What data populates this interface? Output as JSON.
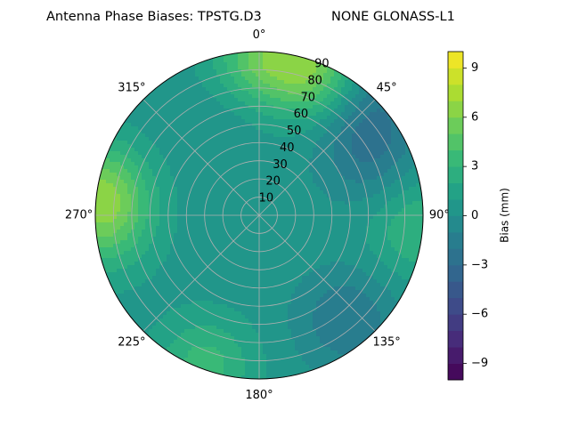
{
  "chart_data": {
    "type": "polar-contour",
    "title_left": "Antenna Phase Biases: TPSTG.D3",
    "title_right": "NONE GLONASS-L1",
    "azimuth_ticks": [
      "0°",
      "45°",
      "90°",
      "135°",
      "180°",
      "225°",
      "270°",
      "315°"
    ],
    "azimuth_tick_values": [
      0,
      45,
      90,
      135,
      180,
      225,
      270,
      315
    ],
    "radial_ticks": [
      "10",
      "20",
      "30",
      "40",
      "50",
      "60",
      "70",
      "80",
      "90"
    ],
    "radial_tick_values": [
      10,
      20,
      30,
      40,
      50,
      60,
      70,
      80,
      90
    ],
    "rlim": [
      0,
      90
    ],
    "theta_zero": "N",
    "theta_direction": "clockwise",
    "grid": true,
    "colorbar": {
      "label": "Bias (mm)",
      "range": [
        -10,
        10
      ],
      "ticks": [
        "−9",
        "−6",
        "−3",
        "0",
        "3",
        "6",
        "9"
      ],
      "tick_values": [
        -9,
        -6,
        -3,
        0,
        3,
        6,
        9
      ],
      "levels": [
        -10,
        -9,
        -8,
        -7,
        -6,
        -5,
        -4,
        -3,
        -2,
        -1,
        0,
        1,
        2,
        3,
        4,
        5,
        6,
        7,
        8,
        9,
        10
      ],
      "colormap": "viridis"
    },
    "field": {
      "background_bias_mm": 0.5,
      "features": [
        {
          "azimuth": 0,
          "zenith": 88,
          "bias_mm": 4.5
        },
        {
          "azimuth": 20,
          "zenith": 85,
          "bias_mm": 5.5
        },
        {
          "azimuth": 280,
          "zenith": 88,
          "bias_mm": 5.0
        },
        {
          "azimuth": 265,
          "zenith": 85,
          "bias_mm": 3.5
        },
        {
          "azimuth": 95,
          "zenith": 88,
          "bias_mm": 3.0
        },
        {
          "azimuth": 200,
          "zenith": 88,
          "bias_mm": 3.5
        },
        {
          "azimuth": 140,
          "zenith": 75,
          "bias_mm": -2.0
        },
        {
          "azimuth": 60,
          "zenith": 68,
          "bias_mm": -1.8
        },
        {
          "azimuth": 45,
          "zenith": 88,
          "bias_mm": -1.5
        },
        {
          "azimuth": 330,
          "zenith": 55,
          "bias_mm": 0.0
        }
      ]
    }
  },
  "colors": {
    "grid": "#b0b0b0",
    "spine": "#000000"
  }
}
